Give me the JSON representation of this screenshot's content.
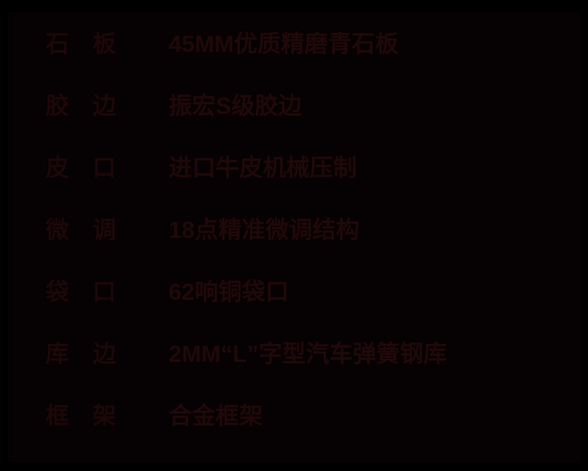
{
  "page": {
    "type": "product-spec-sheet",
    "background_color": "#000000",
    "panel_color": "#060102",
    "text_color": "#1d0708"
  },
  "rows": [
    {
      "label": "石　板",
      "value": "45MM优质精磨青石板"
    },
    {
      "label": "胶　边",
      "value": "振宏S级胶边"
    },
    {
      "label": "皮　口",
      "value": "进口牛皮机械压制"
    },
    {
      "label": "微　调",
      "value": "18点精准微调结构"
    },
    {
      "label": "袋　口",
      "value": "62响铜袋口"
    },
    {
      "label": "库　边",
      "value": "2MM“L”字型汽车弹簧钢库"
    },
    {
      "label": "框　架",
      "value": "合金框架"
    }
  ]
}
